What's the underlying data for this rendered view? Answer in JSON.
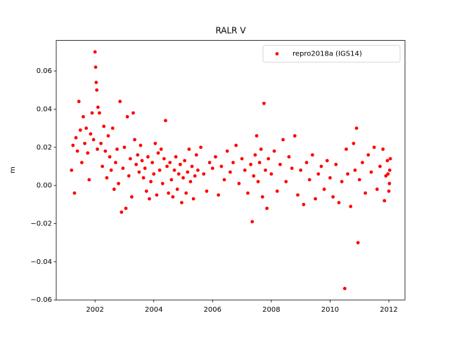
{
  "chart_data": {
    "type": "scatter",
    "title": "RALR V",
    "y_label": "m",
    "legend": "upper right",
    "xlim": [
      2000.68,
      2012.55
    ],
    "ylim": [
      -0.06,
      0.076
    ],
    "xticks": [
      2002,
      2004,
      2006,
      2008,
      2010,
      2012
    ],
    "yticks": [
      {
        "value": -0.06,
        "label": "−0.06"
      },
      {
        "value": -0.04,
        "label": "−0.04"
      },
      {
        "value": -0.02,
        "label": "−0.02"
      },
      {
        "value": 0,
        "label": "0.00"
      },
      {
        "value": 0.02,
        "label": "0.02"
      },
      {
        "value": 0.04,
        "label": "0.04"
      },
      {
        "value": 0.06,
        "label": "0.06"
      }
    ],
    "x": [
      2001.2,
      2001.25,
      2001.3,
      2001.35,
      2001.4,
      2001.45,
      2001.5,
      2001.55,
      2001.6,
      2001.65,
      2001.7,
      2001.75,
      2001.8,
      2001.85,
      2001.9,
      2001.95,
      2002.0,
      2002.02,
      2002.04,
      2002.06,
      2002.08,
      2002.1,
      2002.15,
      2002.2,
      2002.25,
      2002.3,
      2002.35,
      2002.4,
      2002.45,
      2002.5,
      2002.55,
      2002.6,
      2002.65,
      2002.7,
      2002.75,
      2002.8,
      2002.85,
      2002.9,
      2002.95,
      2003.0,
      2003.05,
      2003.1,
      2003.15,
      2003.2,
      2003.25,
      2003.3,
      2003.35,
      2003.4,
      2003.45,
      2003.5,
      2003.55,
      2003.6,
      2003.65,
      2003.7,
      2003.75,
      2003.8,
      2003.85,
      2003.9,
      2003.95,
      2004.0,
      2004.05,
      2004.1,
      2004.15,
      2004.2,
      2004.25,
      2004.3,
      2004.35,
      2004.4,
      2004.45,
      2004.5,
      2004.55,
      2004.6,
      2004.65,
      2004.7,
      2004.75,
      2004.8,
      2004.85,
      2004.9,
      2004.95,
      2005.0,
      2005.05,
      2005.1,
      2005.15,
      2005.2,
      2005.25,
      2005.3,
      2005.35,
      2005.4,
      2005.45,
      2005.5,
      2005.6,
      2005.7,
      2005.8,
      2005.9,
      2006.0,
      2006.1,
      2006.2,
      2006.3,
      2006.4,
      2006.5,
      2006.6,
      2006.7,
      2006.8,
      2006.9,
      2007.0,
      2007.1,
      2007.2,
      2007.3,
      2007.35,
      2007.4,
      2007.45,
      2007.5,
      2007.55,
      2007.6,
      2007.65,
      2007.7,
      2007.75,
      2007.8,
      2007.85,
      2007.9,
      2008.0,
      2008.1,
      2008.2,
      2008.3,
      2008.4,
      2008.5,
      2008.6,
      2008.7,
      2008.8,
      2008.9,
      2009.0,
      2009.1,
      2009.2,
      2009.3,
      2009.4,
      2009.5,
      2009.6,
      2009.7,
      2009.8,
      2009.9,
      2010.0,
      2010.1,
      2010.2,
      2010.3,
      2010.4,
      2010.5,
      2010.55,
      2010.6,
      2010.7,
      2010.8,
      2010.85,
      2010.9,
      2010.95,
      2011.0,
      2011.1,
      2011.2,
      2011.3,
      2011.4,
      2011.5,
      2011.6,
      2011.7,
      2011.8,
      2011.85,
      2011.9,
      2011.95,
      2012.0,
      2012.03,
      2012.05,
      2012.02,
      2011.97
    ],
    "series": [
      {
        "name": "repro2018a (IGS14)",
        "color": "#ff0000",
        "values": [
          0.008,
          0.021,
          -0.004,
          0.025,
          0.018,
          0.044,
          0.029,
          0.012,
          0.036,
          0.022,
          0.03,
          0.017,
          0.003,
          0.027,
          0.038,
          0.024,
          0.07,
          0.062,
          0.054,
          0.05,
          0.019,
          0.041,
          0.038,
          0.022,
          0.01,
          0.031,
          0.018,
          0.004,
          0.026,
          0.015,
          0.008,
          0.03,
          -0.002,
          0.012,
          0.019,
          0.001,
          0.044,
          -0.014,
          0.009,
          0.02,
          -0.012,
          0.036,
          0.005,
          0.014,
          -0.006,
          0.038,
          0.024,
          0.011,
          0.016,
          0.007,
          0.021,
          0.013,
          0.004,
          0.009,
          -0.003,
          0.015,
          -0.007,
          0.002,
          0.012,
          0.006,
          0.022,
          -0.005,
          0.017,
          0.008,
          0.019,
          0.001,
          0.014,
          0.034,
          0.01,
          -0.004,
          0.012,
          0.003,
          -0.006,
          0.008,
          0.015,
          -0.002,
          0.006,
          0.011,
          -0.009,
          0.004,
          0.013,
          -0.004,
          0.007,
          0.019,
          0.002,
          0.01,
          -0.007,
          0.005,
          0.016,
          0.008,
          0.02,
          0.006,
          -0.003,
          0.012,
          0.009,
          0.015,
          -0.005,
          0.01,
          0.003,
          0.018,
          0.007,
          0.012,
          0.021,
          0.001,
          0.014,
          0.008,
          -0.004,
          0.011,
          -0.019,
          0.005,
          0.016,
          0.026,
          0.002,
          0.012,
          0.019,
          -0.006,
          0.043,
          0.008,
          -0.012,
          0.014,
          0.006,
          0.018,
          -0.003,
          0.011,
          0.024,
          0.002,
          0.015,
          0.009,
          0.026,
          -0.005,
          0.008,
          -0.01,
          0.012,
          0.003,
          0.016,
          -0.007,
          0.006,
          0.01,
          -0.002,
          0.013,
          0.004,
          -0.006,
          0.011,
          -0.009,
          0.002,
          -0.054,
          0.019,
          0.006,
          -0.011,
          0.022,
          0.008,
          0.03,
          -0.03,
          0.003,
          0.012,
          -0.004,
          0.016,
          0.007,
          0.02,
          -0.002,
          0.01,
          0.019,
          -0.008,
          0.005,
          0.013,
          -0.003,
          0.008,
          0.014,
          0.001,
          0.006
        ]
      }
    ]
  }
}
